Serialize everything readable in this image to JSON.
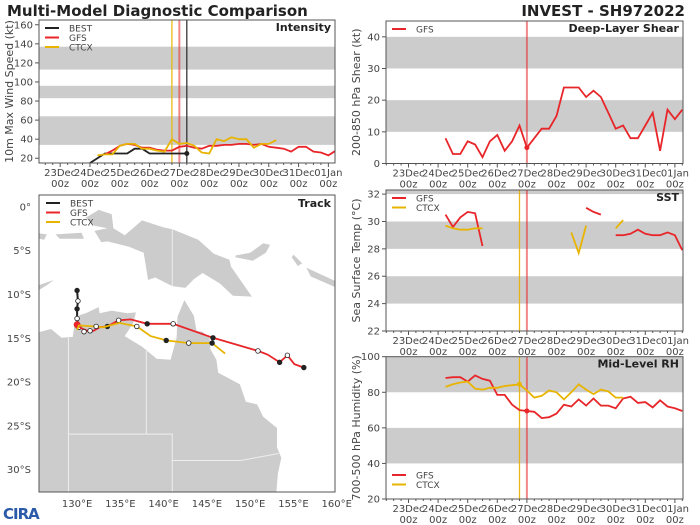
{
  "header": {
    "title": "Multi-Model Diagnostic Comparison",
    "storm": "INVEST - SH972022"
  },
  "logo": "CIRA",
  "colors": {
    "BEST": "#222222",
    "GFS": "#e8262a",
    "CTCX": "#e8b400",
    "band": "#cccccc",
    "land": "#cccccc"
  },
  "x_ticks": [
    {
      "d": "2022-12-23T00",
      "l1": "23Dec",
      "l2": "00z"
    },
    {
      "d": "2022-12-24T00",
      "l1": "24Dec",
      "l2": "00z"
    },
    {
      "d": "2022-12-25T00",
      "l1": "25Dec",
      "l2": "00z"
    },
    {
      "d": "2022-12-26T00",
      "l1": "26Dec",
      "l2": "00z"
    },
    {
      "d": "2022-12-27T00",
      "l1": "27Dec",
      "l2": "00z"
    },
    {
      "d": "2022-12-28T00",
      "l1": "28Dec",
      "l2": "00z"
    },
    {
      "d": "2022-12-29T00",
      "l1": "29Dec",
      "l2": "00z"
    },
    {
      "d": "2022-12-30T00",
      "l1": "30Dec",
      "l2": "00z"
    },
    {
      "d": "2022-12-31T00",
      "l1": "31Dec",
      "l2": "00z"
    },
    {
      "d": "2023-01-01T00",
      "l1": "01Jan",
      "l2": "00z"
    }
  ],
  "chart_data": [
    {
      "id": "intensity",
      "type": "line",
      "title": "Intensity",
      "ylabel": "10m Max Wind Speed (kt)",
      "ylim": [
        15,
        165
      ],
      "yticks": [
        20,
        40,
        60,
        80,
        100,
        120,
        140,
        160
      ],
      "bands": [
        [
          34,
          64
        ],
        [
          83,
          96
        ],
        [
          113,
          137
        ]
      ],
      "legend": [
        "BEST",
        "GFS",
        "CTCX"
      ],
      "legend_pos": "top-left",
      "vlines": [
        {
          "series": "CTCX",
          "x": "2022-12-26T18"
        },
        {
          "series": "GFS",
          "x": "2022-12-27T00"
        },
        {
          "series": "BEST",
          "x": "2022-12-27T06"
        }
      ],
      "series": [
        {
          "name": "BEST",
          "start": "2022-12-24T00",
          "values": [
            15,
            20,
            25,
            25,
            25,
            25,
            30,
            30,
            25,
            25,
            25,
            25,
            25,
            25
          ],
          "end_marker": true
        },
        {
          "name": "GFS",
          "start": "2022-12-24T12",
          "values": [
            24,
            28,
            33,
            35,
            34,
            31,
            31,
            29,
            28,
            28,
            32,
            33,
            31,
            30,
            33,
            33,
            34,
            34,
            35,
            35,
            34,
            35,
            32,
            31,
            30,
            27,
            32,
            32,
            27,
            26,
            23,
            28,
            28
          ]
        },
        {
          "name": "CTCX",
          "start": "2022-12-24T06",
          "values": [
            23,
            24,
            24,
            33,
            35,
            35,
            30,
            30,
            28,
            27,
            40,
            35,
            36,
            33,
            26,
            25,
            40,
            38,
            42,
            40,
            40,
            31,
            35,
            35,
            39
          ]
        }
      ]
    },
    {
      "id": "shear",
      "type": "line",
      "title": "Deep-Layer Shear",
      "ylabel": "200-850 hPa Shear (kt)",
      "ylim": [
        0,
        45
      ],
      "yticks": [
        0,
        10,
        20,
        30,
        40
      ],
      "bands": [
        [
          10,
          20
        ],
        [
          30,
          40
        ]
      ],
      "legend": [
        "GFS"
      ],
      "legend_pos": "top-left",
      "vlines": [
        {
          "series": "GFS",
          "x": "2022-12-27T00"
        }
      ],
      "series": [
        {
          "name": "GFS",
          "start": "2022-12-24T06",
          "values": [
            8,
            3,
            3,
            7,
            6,
            2,
            7,
            9,
            4,
            7,
            12,
            5,
            8,
            11,
            11,
            15,
            24,
            24,
            24,
            21,
            23,
            21,
            16,
            11,
            12,
            8,
            8,
            12,
            16,
            4,
            17,
            14,
            17
          ],
          "mark": "2022-12-27T00"
        }
      ]
    },
    {
      "id": "sst",
      "type": "line",
      "title": "SST",
      "ylabel": "Sea Surface Temp (°C)",
      "ylim": [
        22,
        32.3
      ],
      "yticks": [
        22,
        24,
        26,
        28,
        30,
        32
      ],
      "bands": [
        [
          24,
          26
        ],
        [
          28,
          30
        ],
        [
          32,
          33
        ]
      ],
      "legend": [
        "GFS",
        "CTCX"
      ],
      "legend_pos": "top-left",
      "vlines": [
        {
          "series": "CTCX",
          "x": "2022-12-26T18"
        },
        {
          "series": "GFS",
          "x": "2022-12-27T00"
        }
      ],
      "series": [
        {
          "name": "GFS",
          "start": "2022-12-24T06",
          "values": [
            30.5,
            29.6,
            30.3,
            30.7,
            30.6,
            28.2,
            null,
            null,
            null,
            null,
            null,
            null,
            null,
            null,
            null,
            null,
            null,
            null,
            null,
            31.0,
            30.7,
            30.5,
            null,
            29.0,
            29.0,
            29.1,
            29.4,
            29.1,
            29.0,
            29.0,
            29.2,
            29.0,
            27.9
          ]
        },
        {
          "name": "CTCX",
          "start": "2022-12-24T06",
          "values": [
            29.7,
            29.5,
            29.4,
            29.4,
            29.5,
            29.5,
            null,
            null,
            null,
            null,
            null,
            null,
            null,
            null,
            null,
            null,
            null,
            29.2,
            27.7,
            29.7,
            null,
            null,
            null,
            29.5,
            30.1
          ]
        }
      ]
    },
    {
      "id": "rh",
      "type": "line",
      "title": "Mid-Level RH",
      "ylabel": "700-500 hPa Humidity (%)",
      "ylim": [
        20,
        100
      ],
      "yticks": [
        20,
        40,
        60,
        80,
        100
      ],
      "bands": [
        [
          40,
          60
        ],
        [
          80,
          100
        ]
      ],
      "legend": [
        "GFS",
        "CTCX"
      ],
      "legend_pos": "bottom-left",
      "vlines": [
        {
          "series": "CTCX",
          "x": "2022-12-26T18"
        },
        {
          "series": "GFS",
          "x": "2022-12-27T00"
        }
      ],
      "series": [
        {
          "name": "GFS",
          "start": "2022-12-24T06",
          "values": [
            88,
            88.5,
            88.5,
            86,
            89.5,
            87.5,
            86.5,
            78.5,
            78.5,
            73,
            70,
            69.5,
            69,
            65.5,
            66,
            68,
            73,
            72,
            76,
            72.5,
            76.5,
            72.5,
            72.5,
            71,
            76.5,
            77.5,
            74,
            74.5,
            71.5,
            75.5,
            72,
            71,
            69.5
          ],
          "mark": "2022-12-27T00"
        },
        {
          "name": "CTCX",
          "start": "2022-12-24T06",
          "values": [
            83,
            84.5,
            85.5,
            86,
            82,
            81.5,
            82.5,
            82.5,
            83.5,
            84,
            84.5,
            81,
            77,
            78,
            81,
            80,
            76,
            80,
            84.5,
            81.5,
            79,
            81.5,
            80.5,
            77,
            77
          ],
          "mark": "2022-12-26T18"
        }
      ]
    },
    {
      "id": "track",
      "type": "scatter",
      "title": "Track",
      "lon_ticks": [
        {
          "v": 130,
          "l": "130°E"
        },
        {
          "v": 135,
          "l": "135°E"
        },
        {
          "v": 140,
          "l": "140°E"
        },
        {
          "v": 145,
          "l": "145°E"
        },
        {
          "v": 150,
          "l": "150°E"
        },
        {
          "v": 155,
          "l": "155°E"
        },
        {
          "v": 160,
          "l": "160°E"
        }
      ],
      "lat_ticks": [
        {
          "v": 0,
          "l": "0°"
        },
        {
          "v": -5,
          "l": "5°S"
        },
        {
          "v": -10,
          "l": "10°S"
        },
        {
          "v": -15,
          "l": "15°S"
        },
        {
          "v": -20,
          "l": "20°S"
        },
        {
          "v": -25,
          "l": "25°S"
        },
        {
          "v": -30,
          "l": "30°S"
        }
      ],
      "lon_range": [
        125.6,
        159.8
      ],
      "lat_range": [
        -32.6,
        1.3
      ],
      "legend": [
        "BEST",
        "GFS",
        "CTCX"
      ],
      "legend_pos": "top-left",
      "series": [
        {
          "name": "BEST",
          "points": [
            [
              130.0,
              -9.6
            ],
            [
              130.1,
              -10.8
            ],
            [
              130.0,
              -11.7
            ],
            [
              130.0,
              -12.8
            ],
            [
              130.1,
              -13.6
            ],
            [
              130.2,
              -13.8
            ]
          ]
        },
        {
          "name": "GFS",
          "points": [
            [
              130.0,
              -13.5
            ],
            [
              130.5,
              -13.9
            ],
            [
              131.2,
              -14.2
            ],
            [
              131.9,
              -14.2
            ],
            [
              132.6,
              -13.8
            ],
            [
              133.5,
              -13.7
            ],
            [
              134.8,
              -13.0
            ],
            [
              136.2,
              -12.9
            ],
            [
              138.1,
              -13.4
            ],
            [
              141.1,
              -13.4
            ],
            [
              145.7,
              -15.0
            ],
            [
              150.9,
              -16.5
            ],
            [
              152.0,
              -16.9
            ],
            [
              153.4,
              -17.8
            ],
            [
              154.3,
              -17.0
            ],
            [
              155.1,
              -18.0
            ],
            [
              156.2,
              -18.4
            ]
          ],
          "markers": [
            [
              130.0,
              -13.5,
              "start"
            ],
            [
              130.8,
              -14.3,
              "open"
            ],
            [
              131.5,
              -14.2,
              "open"
            ],
            [
              133.5,
              -13.7,
              "filled"
            ],
            [
              134.8,
              -13.0,
              "open"
            ],
            [
              138.1,
              -13.4,
              "filled"
            ],
            [
              141.1,
              -13.4,
              "open"
            ],
            [
              145.7,
              -15.0,
              "filled"
            ],
            [
              150.9,
              -16.5,
              "open"
            ],
            [
              153.4,
              -17.8,
              "filled"
            ],
            [
              154.3,
              -17.0,
              "open"
            ],
            [
              156.2,
              -18.4,
              "filled"
            ]
          ]
        },
        {
          "name": "CTCX",
          "points": [
            [
              130.0,
              -14.1
            ],
            [
              130.2,
              -13.6
            ],
            [
              131.9,
              -13.7
            ],
            [
              133.0,
              -13.8
            ],
            [
              134.9,
              -13.3
            ],
            [
              136.9,
              -13.7
            ],
            [
              138.5,
              -14.8
            ],
            [
              140.3,
              -15.3
            ],
            [
              142.9,
              -15.6
            ],
            [
              145.6,
              -15.6
            ],
            [
              147.1,
              -16.8
            ]
          ],
          "markers": [
            [
              132.2,
              -13.7,
              "open"
            ],
            [
              136.9,
              -13.7,
              "open"
            ],
            [
              140.3,
              -15.3,
              "filled"
            ],
            [
              142.9,
              -15.6,
              "open"
            ],
            [
              145.6,
              -15.6,
              "filled"
            ]
          ]
        }
      ]
    }
  ]
}
